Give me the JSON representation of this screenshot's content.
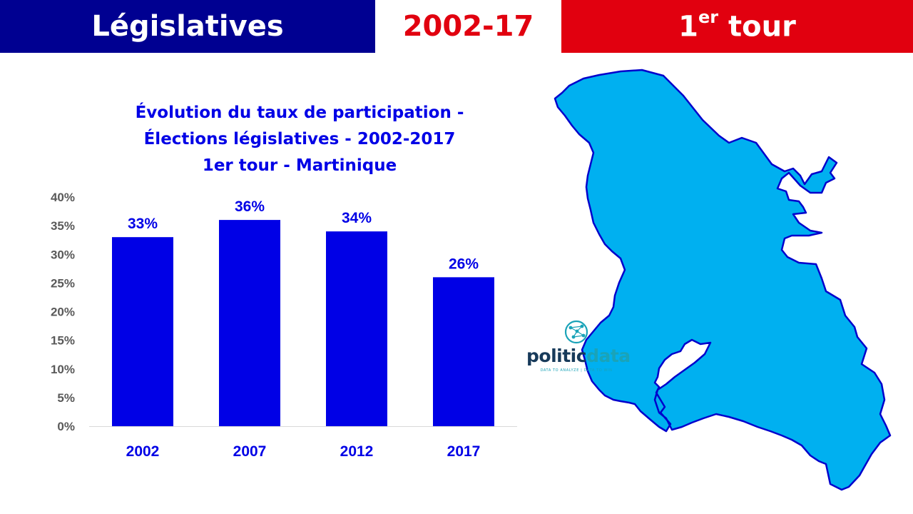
{
  "header": {
    "left": "Législatives",
    "middle": "2002-17",
    "right_main": "1",
    "right_sup": "er",
    "right_rest": " tour"
  },
  "colors": {
    "blue": "#000091",
    "red": "#e1000f",
    "bar": "#0000e6",
    "map": "#00b0f0"
  },
  "chart_data": {
    "type": "bar",
    "title_lines": [
      "Évolution du taux de participation -",
      "Élections législatives - 2002-2017",
      "1er tour - Martinique"
    ],
    "categories": [
      "2002",
      "2007",
      "2012",
      "2017"
    ],
    "values": [
      33,
      36,
      34,
      26
    ],
    "data_labels": [
      "33%",
      "36%",
      "34%",
      "26%"
    ],
    "y_ticks": [
      "0%",
      "5%",
      "10%",
      "15%",
      "20%",
      "25%",
      "30%",
      "35%",
      "40%"
    ],
    "ylim": [
      0,
      40
    ],
    "grid": false,
    "legend": "none"
  },
  "logo": {
    "part1": "politic",
    "part2": "data",
    "tagline": "DATA TO ANALYZE | DATA TO WIN",
    "icon": "globe-network-icon"
  },
  "map": {
    "icon": "martinique-map"
  }
}
